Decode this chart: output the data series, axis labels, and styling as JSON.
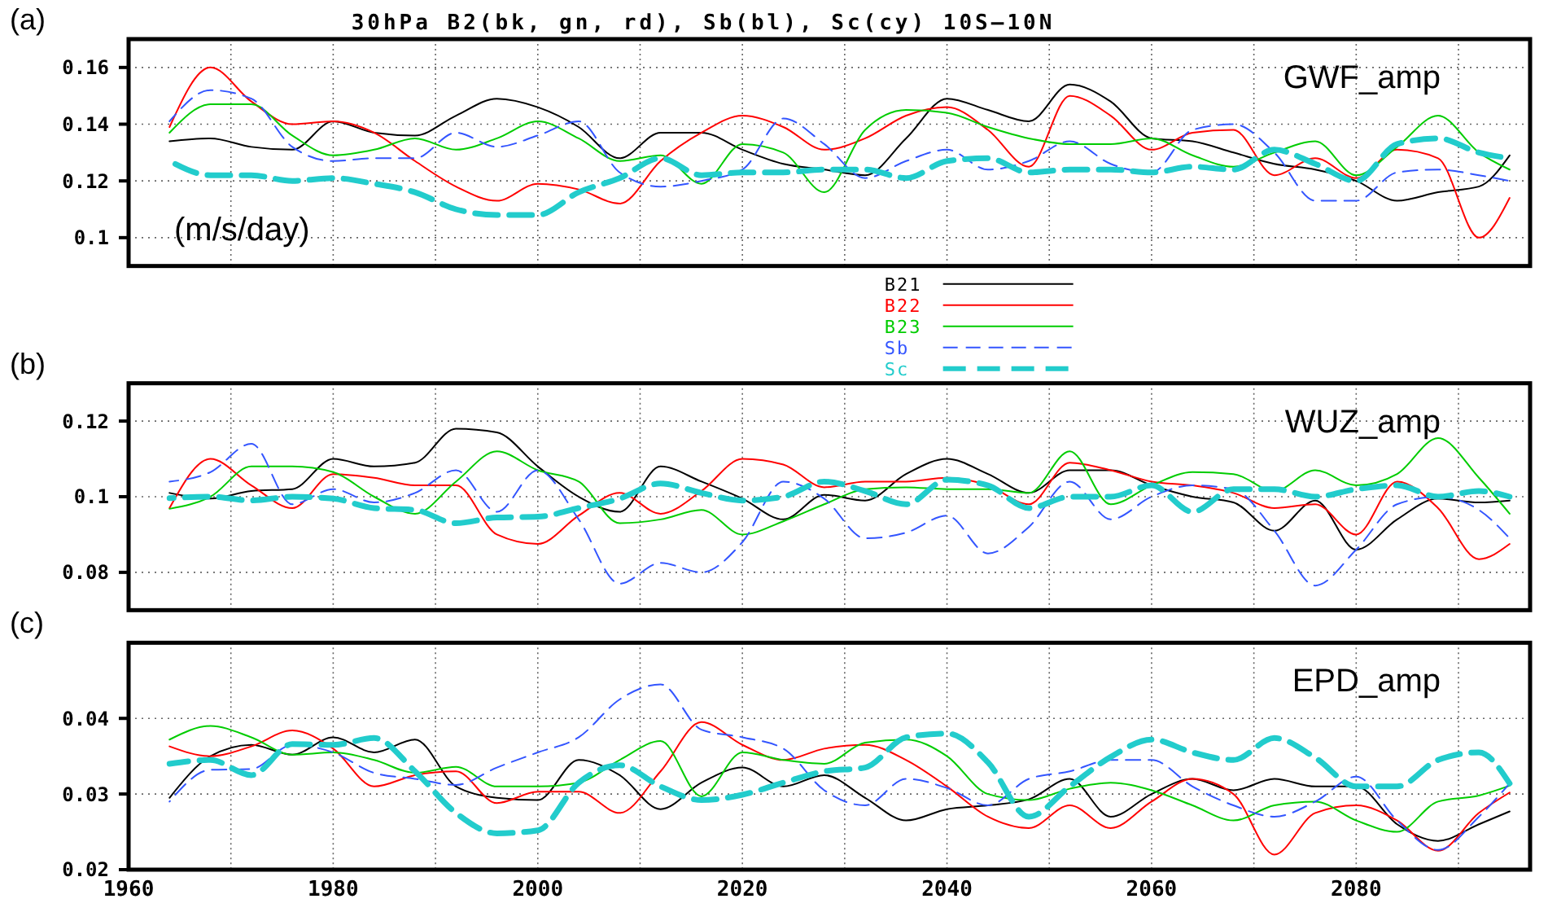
{
  "chart_data": [
    {
      "type": "line",
      "title": "30hPa B2(bk, gn, rd), Sb(bl), Sc(cy) 10S—10N",
      "annotations": [
        "(a)",
        "GWF_amp",
        "(m/s/day)"
      ],
      "x": [
        1964,
        1968,
        1972,
        1976,
        1980,
        1984,
        1988,
        1992,
        1996,
        2000,
        2004,
        2008,
        2012,
        2016,
        2020,
        2024,
        2028,
        2032,
        2036,
        2040,
        2044,
        2048,
        2052,
        2056,
        2060,
        2064,
        2068,
        2072,
        2076,
        2080,
        2084,
        2088,
        2092,
        2095
      ],
      "xlim": [
        1960,
        2097
      ],
      "ylim": [
        0.09,
        0.17
      ],
      "xticks": [
        1960,
        {
          "value": 1970,
          "label": null
        },
        1980,
        {
          "value": 1990,
          "label": null
        },
        2000,
        {
          "value": 2010,
          "label": null
        },
        2020,
        {
          "value": 2030,
          "label": null
        },
        2040,
        {
          "value": 2050,
          "label": null
        },
        2060,
        {
          "value": 2070,
          "label": null
        },
        2080,
        {
          "value": 2090,
          "label": null
        }
      ],
      "yticks": [
        0.1,
        0.12,
        0.14,
        0.16
      ],
      "tick_labels": "y",
      "grid": true,
      "legend": "bottom",
      "series": [
        {
          "name": "B21",
          "color": "#000000",
          "line_style": "solid",
          "values": [
            0.134,
            0.135,
            0.132,
            0.131,
            0.141,
            0.137,
            0.136,
            0.143,
            0.149,
            0.146,
            0.139,
            0.128,
            0.137,
            0.137,
            0.131,
            0.126,
            0.124,
            0.122,
            0.135,
            0.149,
            0.145,
            0.141,
            0.154,
            0.148,
            0.135,
            0.134,
            0.13,
            0.126,
            0.124,
            0.12,
            0.113,
            0.116,
            0.118,
            0.129
          ]
        },
        {
          "name": "B22",
          "color": "#ff0000",
          "line_style": "solid",
          "values": [
            0.139,
            0.16,
            0.148,
            0.14,
            0.141,
            0.137,
            0.127,
            0.118,
            0.113,
            0.119,
            0.117,
            0.112,
            0.127,
            0.137,
            0.143,
            0.139,
            0.131,
            0.135,
            0.143,
            0.146,
            0.138,
            0.125,
            0.15,
            0.143,
            0.131,
            0.137,
            0.138,
            0.122,
            0.128,
            0.121,
            0.131,
            0.128,
            0.1,
            0.114
          ]
        },
        {
          "name": "B23",
          "color": "#00cc00",
          "line_style": "solid",
          "values": [
            0.137,
            0.147,
            0.147,
            0.136,
            0.129,
            0.131,
            0.135,
            0.131,
            0.135,
            0.141,
            0.135,
            0.127,
            0.129,
            0.119,
            0.133,
            0.13,
            0.116,
            0.138,
            0.145,
            0.144,
            0.139,
            0.135,
            0.133,
            0.133,
            0.135,
            0.129,
            0.125,
            0.13,
            0.134,
            0.122,
            0.132,
            0.143,
            0.13,
            0.124
          ]
        },
        {
          "name": "Sb",
          "color": "#3355ff",
          "line_style": "dashed",
          "values": [
            0.141,
            0.152,
            0.149,
            0.132,
            0.127,
            0.128,
            0.128,
            0.137,
            0.132,
            0.136,
            0.141,
            0.123,
            0.118,
            0.12,
            0.124,
            0.142,
            0.133,
            0.121,
            0.127,
            0.131,
            0.124,
            0.127,
            0.134,
            0.126,
            0.123,
            0.138,
            0.14,
            0.13,
            0.113,
            0.113,
            0.123,
            0.124,
            0.122,
            0.12
          ]
        },
        {
          "name": "Sc",
          "color": "#22cccc",
          "line_style": "dashed",
          "values": [
            0.127,
            0.122,
            0.122,
            0.12,
            0.121,
            0.119,
            0.116,
            0.11,
            0.108,
            0.108,
            0.116,
            0.121,
            0.128,
            0.122,
            0.123,
            0.123,
            0.124,
            0.124,
            0.121,
            0.127,
            0.128,
            0.123,
            0.124,
            0.124,
            0.123,
            0.125,
            0.124,
            0.131,
            0.126,
            0.12,
            0.133,
            0.135,
            0.13,
            0.128
          ]
        }
      ]
    },
    {
      "type": "line",
      "annotations": [
        "(b)",
        "WUZ_amp"
      ],
      "x": [
        1964,
        1968,
        1972,
        1976,
        1980,
        1984,
        1988,
        1992,
        1996,
        2000,
        2004,
        2008,
        2012,
        2016,
        2020,
        2024,
        2028,
        2032,
        2036,
        2040,
        2044,
        2048,
        2052,
        2056,
        2060,
        2064,
        2068,
        2072,
        2076,
        2080,
        2084,
        2088,
        2092,
        2095
      ],
      "xlim": [
        1960,
        2097
      ],
      "ylim": [
        0.07,
        0.13
      ],
      "xticks": [
        1960,
        {
          "value": 1970,
          "label": null
        },
        1980,
        {
          "value": 1990,
          "label": null
        },
        2000,
        {
          "value": 2010,
          "label": null
        },
        2020,
        {
          "value": 2030,
          "label": null
        },
        2040,
        {
          "value": 2050,
          "label": null
        },
        2060,
        {
          "value": 2070,
          "label": null
        },
        2080,
        {
          "value": 2090,
          "label": null
        }
      ],
      "yticks": [
        0.08,
        0.1,
        0.12
      ],
      "tick_labels": "y",
      "grid": true,
      "series": [
        {
          "color": "#000000",
          "line_style": "solid",
          "values": [
            0.101,
            0.0995,
            0.1015,
            0.102,
            0.11,
            0.108,
            0.109,
            0.118,
            0.117,
            0.108,
            0.1,
            0.096,
            0.108,
            0.104,
            0.0995,
            0.094,
            0.1005,
            0.099,
            0.106,
            0.11,
            0.106,
            0.101,
            0.107,
            0.107,
            0.103,
            0.1,
            0.0985,
            0.091,
            0.099,
            0.086,
            0.094,
            0.0995,
            0.0985,
            0.099
          ]
        },
        {
          "color": "#ff0000",
          "line_style": "solid",
          "values": [
            0.097,
            0.11,
            0.103,
            0.097,
            0.106,
            0.105,
            0.103,
            0.103,
            0.09,
            0.0875,
            0.095,
            0.101,
            0.0955,
            0.1015,
            0.11,
            0.1085,
            0.1025,
            0.104,
            0.104,
            0.105,
            0.103,
            0.098,
            0.109,
            0.107,
            0.104,
            0.103,
            0.101,
            0.097,
            0.098,
            0.09,
            0.104,
            0.097,
            0.0835,
            0.0875
          ]
        },
        {
          "color": "#00cc00",
          "line_style": "solid",
          "values": [
            0.0968,
            0.1,
            0.108,
            0.108,
            0.1065,
            0.1,
            0.0955,
            0.104,
            0.112,
            0.107,
            0.104,
            0.093,
            0.094,
            0.0965,
            0.09,
            0.0935,
            0.098,
            0.102,
            0.1025,
            0.102,
            0.102,
            0.101,
            0.112,
            0.098,
            0.103,
            0.1065,
            0.106,
            0.1015,
            0.107,
            0.103,
            0.106,
            0.1155,
            0.105,
            0.0955
          ]
        },
        {
          "color": "#3355ff",
          "line_style": "dashed",
          "values": [
            0.104,
            0.1065,
            0.114,
            0.098,
            0.102,
            0.0985,
            0.101,
            0.107,
            0.096,
            0.107,
            0.094,
            0.077,
            0.0825,
            0.08,
            0.088,
            0.104,
            0.0995,
            0.089,
            0.0905,
            0.095,
            0.085,
            0.092,
            0.104,
            0.094,
            0.1,
            0.103,
            0.102,
            0.091,
            0.0765,
            0.086,
            0.098,
            0.1,
            0.0965,
            0.089
          ]
        },
        {
          "color": "#22cccc",
          "line_style": "dashed",
          "values": [
            0.0996,
            0.1,
            0.099,
            0.1,
            0.0995,
            0.097,
            0.0965,
            0.093,
            0.0945,
            0.0947,
            0.097,
            0.0995,
            0.1035,
            0.101,
            0.099,
            0.1,
            0.104,
            0.1015,
            0.098,
            0.1045,
            0.103,
            0.097,
            0.1,
            0.1,
            0.103,
            0.096,
            0.102,
            0.102,
            0.1,
            0.102,
            0.103,
            0.1,
            0.1015,
            0.1
          ]
        }
      ]
    },
    {
      "type": "line",
      "annotations": [
        "(c)",
        "EPD_amp"
      ],
      "x": [
        1964,
        1968,
        1972,
        1976,
        1980,
        1984,
        1988,
        1992,
        1996,
        2000,
        2004,
        2008,
        2012,
        2016,
        2020,
        2024,
        2028,
        2032,
        2036,
        2040,
        2044,
        2048,
        2052,
        2056,
        2060,
        2064,
        2068,
        2072,
        2076,
        2080,
        2084,
        2088,
        2092,
        2095
      ],
      "xlim": [
        1960,
        2097
      ],
      "ylim": [
        0.02,
        0.05
      ],
      "xticks": [
        1960,
        {
          "value": 1970,
          "label": null
        },
        1980,
        {
          "value": 1990,
          "label": null
        },
        2000,
        {
          "value": 2010,
          "label": null
        },
        2020,
        {
          "value": 2030,
          "label": null
        },
        2040,
        {
          "value": 2050,
          "label": null
        },
        2060,
        {
          "value": 2070,
          "label": null
        },
        2080,
        {
          "value": 2090,
          "label": null
        }
      ],
      "yticks": [
        0.02,
        0.03,
        0.04
      ],
      "grid": true,
      "series": [
        {
          "color": "#000000",
          "line_style": "solid",
          "values": [
            0.0295,
            0.035,
            0.0365,
            0.0352,
            0.0375,
            0.0355,
            0.0372,
            0.031,
            0.0295,
            0.0292,
            0.0345,
            0.0325,
            0.028,
            0.0315,
            0.0335,
            0.031,
            0.0325,
            0.0295,
            0.0265,
            0.028,
            0.0285,
            0.0293,
            0.032,
            0.027,
            0.03,
            0.032,
            0.0305,
            0.032,
            0.031,
            0.031,
            0.026,
            0.0238,
            0.026,
            0.0277
          ]
        },
        {
          "color": "#ff0000",
          "line_style": "solid",
          "values": [
            0.0363,
            0.035,
            0.0363,
            0.0384,
            0.036,
            0.031,
            0.0325,
            0.033,
            0.0288,
            0.0303,
            0.0303,
            0.0275,
            0.033,
            0.0395,
            0.0365,
            0.0345,
            0.036,
            0.0365,
            0.0345,
            0.031,
            0.027,
            0.0255,
            0.0285,
            0.0255,
            0.029,
            0.032,
            0.03,
            0.022,
            0.0275,
            0.0285,
            0.0265,
            0.0225,
            0.0275,
            0.0302
          ]
        },
        {
          "color": "#00cc00",
          "line_style": "solid",
          "values": [
            0.0372,
            0.039,
            0.0375,
            0.0352,
            0.0355,
            0.0345,
            0.0328,
            0.0336,
            0.031,
            0.031,
            0.0315,
            0.0345,
            0.037,
            0.0297,
            0.0355,
            0.0345,
            0.034,
            0.0368,
            0.0372,
            0.035,
            0.03,
            0.0292,
            0.0307,
            0.0315,
            0.0305,
            0.0285,
            0.0265,
            0.0285,
            0.029,
            0.0265,
            0.025,
            0.029,
            0.0298,
            0.0311
          ]
        },
        {
          "color": "#3355ff",
          "line_style": "dashed",
          "values": [
            0.029,
            0.0332,
            0.0333,
            0.0365,
            0.0355,
            0.0328,
            0.032,
            0.0312,
            0.0335,
            0.0355,
            0.0375,
            0.0425,
            0.0445,
            0.0385,
            0.0375,
            0.036,
            0.0305,
            0.0285,
            0.032,
            0.0308,
            0.0285,
            0.032,
            0.033,
            0.0345,
            0.0345,
            0.031,
            0.0285,
            0.027,
            0.029,
            0.0323,
            0.0265,
            0.0226,
            0.027,
            0.0314
          ]
        },
        {
          "color": "#22cccc",
          "line_style": "dashed",
          "values": [
            0.034,
            0.0345,
            0.0325,
            0.0366,
            0.0365,
            0.0374,
            0.033,
            0.0275,
            0.0248,
            0.0252,
            0.0315,
            0.0338,
            0.031,
            0.0292,
            0.0299,
            0.0315,
            0.033,
            0.0335,
            0.0375,
            0.038,
            0.0342,
            0.027,
            0.031,
            0.0349,
            0.0372,
            0.0355,
            0.0345,
            0.0374,
            0.0348,
            0.031,
            0.031,
            0.0345,
            0.0355,
            0.0314
          ]
        }
      ]
    }
  ]
}
